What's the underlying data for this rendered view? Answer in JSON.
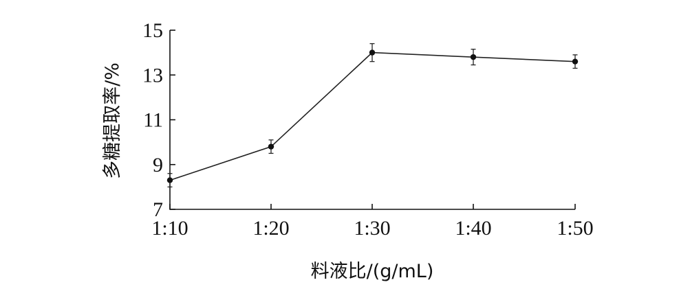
{
  "chart_data": {
    "type": "line",
    "title": "",
    "xlabel": "料液比/(g/mL)",
    "ylabel": "多糖提取率/%",
    "categories": [
      "1:10",
      "1:20",
      "1:30",
      "1:40",
      "1:50"
    ],
    "series": [
      {
        "values": [
          8.3,
          9.8,
          14.0,
          13.8,
          13.6
        ],
        "errors": [
          0.3,
          0.3,
          0.4,
          0.35,
          0.3
        ]
      }
    ],
    "ylim": [
      7,
      15
    ],
    "yticks": [
      "7",
      "9",
      "11",
      "13",
      "15"
    ],
    "grid": false,
    "legend": "none",
    "colors": {
      "line": "#222222",
      "axis": "#111111"
    }
  }
}
